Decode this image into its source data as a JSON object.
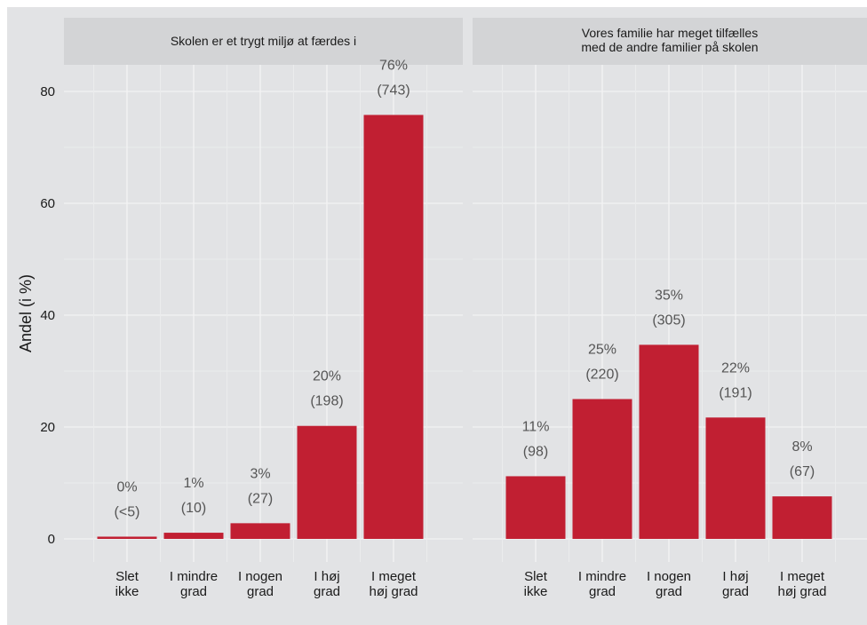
{
  "chart_data": {
    "type": "bar",
    "ylabel": "Andel (i %)",
    "ylim": [
      0,
      85
    ],
    "yticks": [
      "0",
      "20",
      "40",
      "60",
      "80"
    ],
    "ytick_values": [
      0,
      20,
      40,
      60,
      80
    ],
    "grid": true,
    "colors": {
      "bar": "#c11f32",
      "panel": "#e2e3e5",
      "strip": "#d3d4d6",
      "grid_major": "#f3f3f4",
      "grid_minor": "#ebeced"
    },
    "categories": [
      [
        "Slet",
        "ikke"
      ],
      [
        "I mindre",
        "grad"
      ],
      [
        "I nogen",
        "grad"
      ],
      [
        "I høj",
        "grad"
      ],
      [
        "I meget",
        "høj grad"
      ]
    ],
    "panels": [
      {
        "title": [
          "Skolen er et trygt miljø at færdes i"
        ],
        "values": [
          0.4,
          1.1,
          2.8,
          20.2,
          75.8
        ],
        "pct_labels": [
          "0%",
          "1%",
          "3%",
          "20%",
          "76%"
        ],
        "count_labels": [
          "(<5)",
          "(10)",
          "(27)",
          "(198)",
          "(743)"
        ]
      },
      {
        "title": [
          "Vores familie har meget tilfælles",
          "med de andre familier på skolen"
        ],
        "values": [
          11.2,
          25.0,
          34.7,
          21.7,
          7.6
        ],
        "pct_labels": [
          "11%",
          "25%",
          "35%",
          "22%",
          "8%"
        ],
        "count_labels": [
          "(98)",
          "(220)",
          "(305)",
          "(191)",
          "(67)"
        ]
      }
    ]
  }
}
